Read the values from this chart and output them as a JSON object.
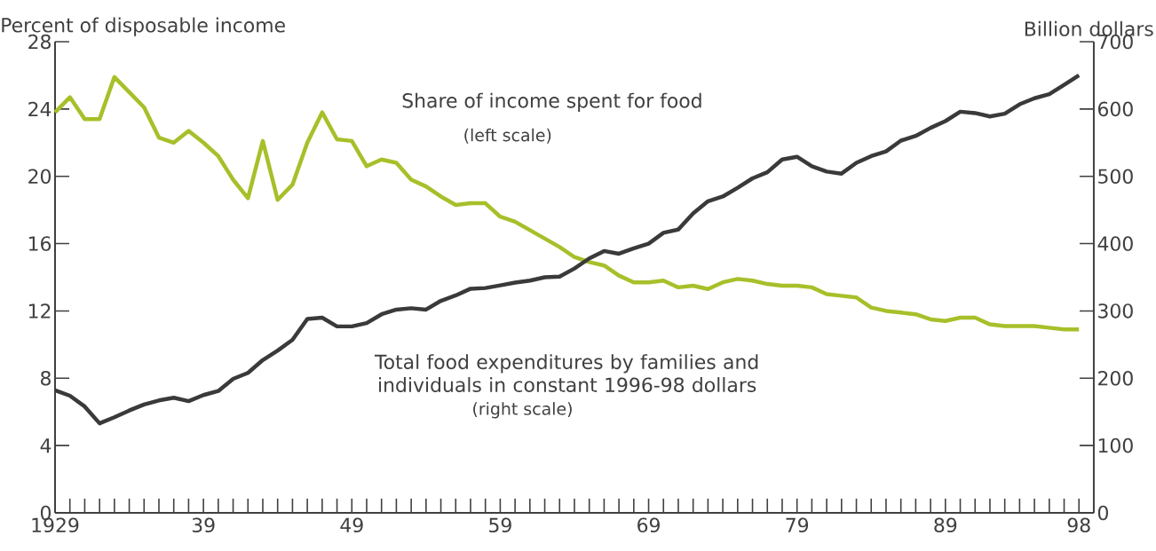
{
  "chart_data": {
    "type": "line",
    "ylabel": "Percent of disposable income",
    "y2label": "Billion dollars",
    "x": [
      1929,
      1930,
      1931,
      1932,
      1933,
      1934,
      1935,
      1936,
      1937,
      1938,
      1939,
      1940,
      1941,
      1942,
      1943,
      1944,
      1945,
      1946,
      1947,
      1948,
      1949,
      1950,
      1951,
      1952,
      1953,
      1954,
      1955,
      1956,
      1957,
      1958,
      1959,
      1960,
      1961,
      1962,
      1963,
      1964,
      1965,
      1966,
      1967,
      1968,
      1969,
      1970,
      1971,
      1972,
      1973,
      1974,
      1975,
      1976,
      1977,
      1978,
      1979,
      1980,
      1981,
      1982,
      1983,
      1984,
      1985,
      1986,
      1987,
      1988,
      1989,
      1990,
      1991,
      1992,
      1993,
      1994,
      1995,
      1996,
      1997,
      1998
    ],
    "series": [
      {
        "name": "Share of income spent for food",
        "color": "#a8bf2a",
        "values": [
          23.8,
          24.7,
          23.4,
          23.4,
          25.9,
          25.0,
          24.1,
          22.3,
          22.0,
          22.7,
          22.0,
          21.2,
          19.8,
          18.7,
          22.1,
          18.6,
          19.5,
          22.0,
          23.8,
          22.2,
          22.1,
          20.6,
          21.0,
          20.8,
          19.8,
          19.4,
          18.8,
          18.3,
          18.4,
          18.4,
          17.6,
          17.3,
          16.8,
          16.3,
          15.8,
          15.2,
          14.9,
          14.7,
          14.1,
          13.7,
          13.7,
          13.8,
          13.4,
          13.5,
          13.3,
          13.7,
          13.9,
          13.8,
          13.6,
          13.5,
          13.5,
          13.4,
          13.0,
          12.9,
          12.8,
          12.2,
          12.0,
          11.9,
          11.8,
          11.5,
          11.4,
          11.6,
          11.6,
          11.2,
          11.1,
          11.1,
          11.1,
          11.0,
          10.9,
          10.9
        ]
      },
      {
        "name": "Total food expenditures by families and individuals in constant 1996-98 dollars",
        "color": "#3a3a3a",
        "axis": "y2",
        "values": [
          182,
          174,
          158,
          133,
          142,
          152,
          161,
          167,
          171,
          166,
          175,
          181,
          199,
          208,
          227,
          241,
          257,
          288,
          290,
          277,
          277,
          282,
          295,
          302,
          304,
          302,
          315,
          323,
          333,
          334,
          338,
          342,
          345,
          350,
          351,
          363,
          378,
          389,
          385,
          393,
          400,
          416,
          421,
          445,
          463,
          470,
          483,
          497,
          506,
          525,
          529,
          515,
          507,
          504,
          520,
          530,
          537,
          553,
          560,
          572,
          582,
          596,
          594,
          589,
          593,
          607,
          616,
          622,
          636,
          650
        ]
      }
    ],
    "annotations": [
      "(left scale)",
      "(right scale)"
    ],
    "xlim": [
      1929,
      1999
    ],
    "xticks": [
      {
        "value": 1929,
        "label": "1929"
      },
      {
        "value": 1930,
        "label": null
      },
      {
        "value": 1931,
        "label": null
      },
      {
        "value": 1932,
        "label": null
      },
      {
        "value": 1933,
        "label": null
      },
      {
        "value": 1934,
        "label": null
      },
      {
        "value": 1935,
        "label": null
      },
      {
        "value": 1936,
        "label": null
      },
      {
        "value": 1937,
        "label": null
      },
      {
        "value": 1938,
        "label": null
      },
      {
        "value": 1939,
        "label": "39"
      },
      {
        "value": 1940,
        "label": null
      },
      {
        "value": 1941,
        "label": null
      },
      {
        "value": 1942,
        "label": null
      },
      {
        "value": 1943,
        "label": null
      },
      {
        "value": 1944,
        "label": null
      },
      {
        "value": 1945,
        "label": null
      },
      {
        "value": 1946,
        "label": null
      },
      {
        "value": 1947,
        "label": null
      },
      {
        "value": 1948,
        "label": null
      },
      {
        "value": 1949,
        "label": "49"
      },
      {
        "value": 1950,
        "label": null
      },
      {
        "value": 1951,
        "label": null
      },
      {
        "value": 1952,
        "label": null
      },
      {
        "value": 1953,
        "label": null
      },
      {
        "value": 1954,
        "label": null
      },
      {
        "value": 1955,
        "label": null
      },
      {
        "value": 1956,
        "label": null
      },
      {
        "value": 1957,
        "label": null
      },
      {
        "value": 1958,
        "label": null
      },
      {
        "value": 1959,
        "label": "59"
      },
      {
        "value": 1960,
        "label": null
      },
      {
        "value": 1961,
        "label": null
      },
      {
        "value": 1962,
        "label": null
      },
      {
        "value": 1963,
        "label": null
      },
      {
        "value": 1964,
        "label": null
      },
      {
        "value": 1965,
        "label": null
      },
      {
        "value": 1966,
        "label": null
      },
      {
        "value": 1967,
        "label": null
      },
      {
        "value": 1968,
        "label": null
      },
      {
        "value": 1969,
        "label": "69"
      },
      {
        "value": 1970,
        "label": null
      },
      {
        "value": 1971,
        "label": null
      },
      {
        "value": 1972,
        "label": null
      },
      {
        "value": 1973,
        "label": null
      },
      {
        "value": 1974,
        "label": null
      },
      {
        "value": 1975,
        "label": null
      },
      {
        "value": 1976,
        "label": null
      },
      {
        "value": 1977,
        "label": null
      },
      {
        "value": 1978,
        "label": null
      },
      {
        "value": 1979,
        "label": "79"
      },
      {
        "value": 1980,
        "label": null
      },
      {
        "value": 1981,
        "label": null
      },
      {
        "value": 1982,
        "label": null
      },
      {
        "value": 1983,
        "label": null
      },
      {
        "value": 1984,
        "label": null
      },
      {
        "value": 1985,
        "label": null
      },
      {
        "value": 1986,
        "label": null
      },
      {
        "value": 1987,
        "label": null
      },
      {
        "value": 1988,
        "label": null
      },
      {
        "value": 1989,
        "label": "89"
      },
      {
        "value": 1990,
        "label": null
      },
      {
        "value": 1991,
        "label": null
      },
      {
        "value": 1992,
        "label": null
      },
      {
        "value": 1993,
        "label": null
      },
      {
        "value": 1994,
        "label": null
      },
      {
        "value": 1995,
        "label": null
      },
      {
        "value": 1996,
        "label": null
      },
      {
        "value": 1997,
        "label": null
      },
      {
        "value": 1998,
        "label": "98"
      }
    ],
    "ylim": [
      0,
      28
    ],
    "yticks": [
      0,
      4,
      8,
      12,
      16,
      20,
      24,
      28
    ],
    "y2lim": [
      0,
      700
    ],
    "y2ticks": [
      0,
      100,
      200,
      300,
      400,
      500,
      600,
      700
    ]
  }
}
